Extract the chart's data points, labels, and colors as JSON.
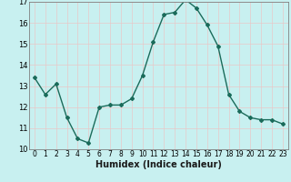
{
  "x": [
    0,
    1,
    2,
    3,
    4,
    5,
    6,
    7,
    8,
    9,
    10,
    11,
    12,
    13,
    14,
    15,
    16,
    17,
    18,
    19,
    20,
    21,
    22,
    23
  ],
  "y": [
    13.4,
    12.6,
    13.1,
    11.5,
    10.5,
    10.3,
    12.0,
    12.1,
    12.1,
    12.4,
    13.5,
    15.1,
    16.4,
    16.5,
    17.1,
    16.7,
    15.9,
    14.9,
    12.6,
    11.8,
    11.5,
    11.4,
    11.4,
    11.2
  ],
  "xlabel": "Humidex (Indice chaleur)",
  "ylim": [
    10,
    17
  ],
  "yticks": [
    10,
    11,
    12,
    13,
    14,
    15,
    16,
    17
  ],
  "xticks": [
    0,
    1,
    2,
    3,
    4,
    5,
    6,
    7,
    8,
    9,
    10,
    11,
    12,
    13,
    14,
    15,
    16,
    17,
    18,
    19,
    20,
    21,
    22,
    23
  ],
  "line_color": "#1a6b5a",
  "marker": "D",
  "markersize": 2.0,
  "bg_color": "#c8f0f0",
  "grid_color": "#e8c8c8",
  "linewidth": 1.0,
  "tick_fontsize": 5.5,
  "xlabel_fontsize": 7.0
}
